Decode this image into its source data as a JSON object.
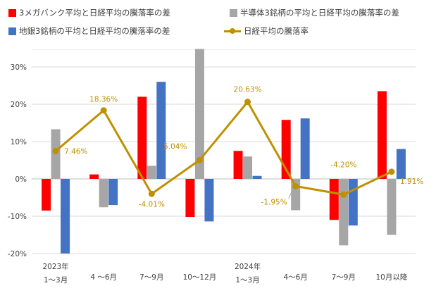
{
  "chart_data": {
    "type": "bar",
    "categories": [
      [
        "2023年",
        "1～3月"
      ],
      [
        "4 ～6月"
      ],
      [
        "7～9月"
      ],
      [
        "10～12月"
      ],
      [
        "2024年",
        "1～3月"
      ],
      [
        "4～6月"
      ],
      [
        "7～9月"
      ],
      [
        "10月以降"
      ]
    ],
    "series": [
      {
        "name": "3メガバンク平均と日経平均の騰落率の差",
        "type": "bar",
        "color": "#ff0000",
        "values": [
          -8.5,
          1.2,
          22.0,
          -10.2,
          7.5,
          15.8,
          -11.0,
          23.5
        ]
      },
      {
        "name": "半導体3銘柄の平均と日経平均の騰落率の差",
        "type": "bar",
        "color": "#a6a6a6",
        "values": [
          13.3,
          -7.6,
          3.5,
          34.8,
          6.0,
          -8.4,
          -17.8,
          -15.0
        ]
      },
      {
        "name": "地銀3銘柄の平均と日経平均の騰落率の差",
        "type": "bar",
        "color": "#4472c4",
        "values": [
          -20.0,
          -7.0,
          26.0,
          -11.4,
          0.8,
          16.2,
          -12.5,
          8.0
        ]
      },
      {
        "name": "日経平均の騰落率",
        "type": "line",
        "color": "#bf9000",
        "values": [
          7.46,
          18.36,
          -4.01,
          5.04,
          20.63,
          -1.95,
          -4.2,
          1.91
        ],
        "labels": [
          "7.46%",
          "18.36%",
          "-4.01%",
          "5.04%",
          "20.63%",
          "-1.95%",
          "-4.20%",
          "1.91%"
        ]
      }
    ],
    "yticks": [
      "30%",
      "20%",
      "10%",
      "0%",
      "-10%",
      "-20%"
    ],
    "ytick_values": [
      30,
      20,
      10,
      0,
      -10,
      -20
    ],
    "ylim": [
      -20,
      35
    ],
    "grid": true,
    "legend_position": "top"
  }
}
